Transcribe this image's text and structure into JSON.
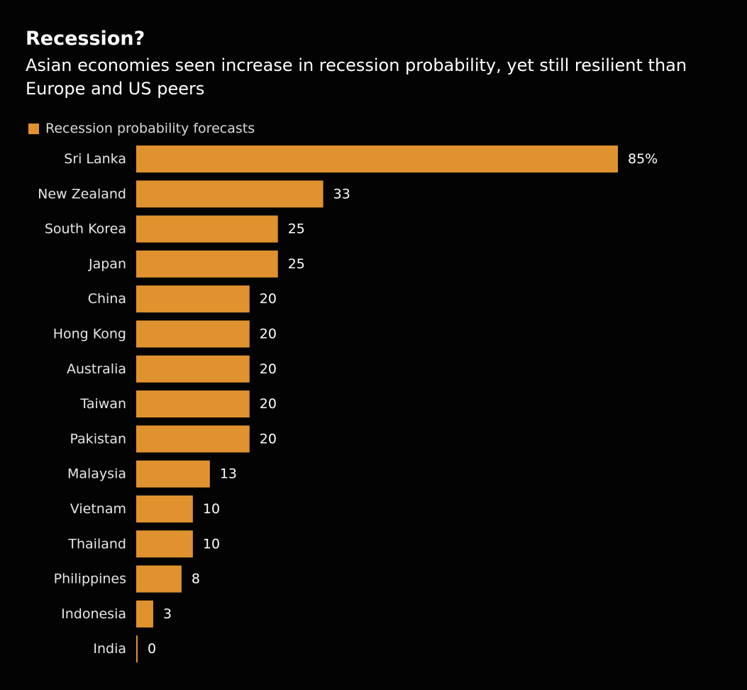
{
  "colors": {
    "background": "#030303",
    "bar": "#E0922F",
    "text": "#FFFFFF",
    "label": "#E6E6E6"
  },
  "chart_data": {
    "type": "bar",
    "orientation": "horizontal",
    "title": "Recession?",
    "subtitle": "Asian economies seen increase in recession probability, yet still resilient than Europe and US peers",
    "legend": [
      "Recession probability forecasts"
    ],
    "legend_placement": "top-left",
    "grid": false,
    "categories": [
      "Sri Lanka",
      "New Zealand",
      "South Korea",
      "Japan",
      "China",
      "Hong Kong",
      "Australia",
      "Taiwan",
      "Pakistan",
      "Malaysia",
      "Vietnam",
      "Thailand",
      "Philippines",
      "Indonesia",
      "India"
    ],
    "series": [
      {
        "name": "Recession probability forecasts",
        "values": [
          85,
          33,
          25,
          25,
          20,
          20,
          20,
          20,
          20,
          13,
          10,
          10,
          8,
          3,
          0
        ]
      }
    ],
    "value_labels": [
      "85%",
      "33",
      "25",
      "25",
      "20",
      "20",
      "20",
      "20",
      "20",
      "13",
      "10",
      "10",
      "8",
      "3",
      "0"
    ],
    "xlim": [
      0,
      85
    ]
  }
}
